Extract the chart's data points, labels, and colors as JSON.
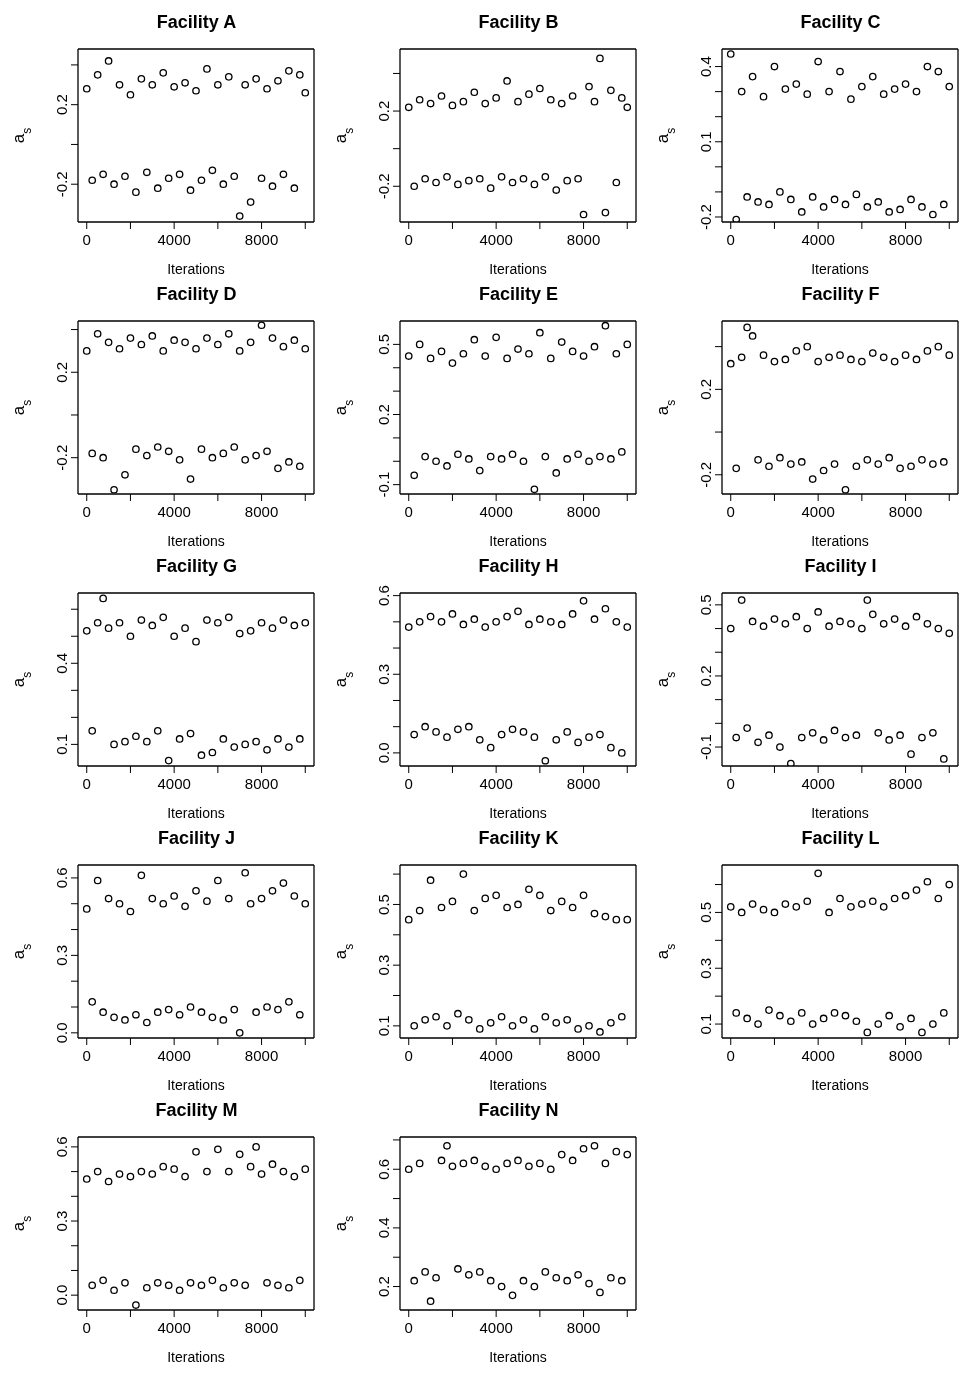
{
  "chart_data": [
    {
      "type": "scatter",
      "title": "Facility A",
      "xlabel": "Iterations",
      "ylabel": "a$_{s}$",
      "color": "#000000",
      "marker": "circle",
      "xlim": [
        -400,
        10400
      ],
      "ylim": [
        -0.39,
        0.48
      ],
      "xticks": [
        0,
        {
          "value": 2000,
          "label": null
        },
        4000,
        {
          "value": 6000,
          "label": null
        },
        8000,
        {
          "value": 10000,
          "label": null
        }
      ],
      "yticks": [
        -0.2,
        {
          "value": 0,
          "label": null
        },
        0.2,
        {
          "value": 0.4,
          "label": null
        }
      ],
      "x": [
        0,
        250,
        500,
        750,
        1000,
        1250,
        1500,
        1750,
        2000,
        2250,
        2500,
        2750,
        3000,
        3250,
        3500,
        3750,
        4000,
        4250,
        4500,
        4750,
        5000,
        5250,
        5500,
        5750,
        6000,
        6250,
        6500,
        6750,
        7000,
        7250,
        7500,
        7750,
        8000,
        8250,
        8500,
        8750,
        9000,
        9250,
        9500,
        9750,
        10000
      ],
      "values": [
        0.28,
        -0.18,
        0.35,
        -0.15,
        0.42,
        -0.2,
        0.3,
        -0.16,
        0.25,
        -0.24,
        0.33,
        -0.14,
        0.3,
        -0.22,
        0.36,
        -0.17,
        0.29,
        -0.15,
        0.31,
        -0.23,
        0.27,
        -0.18,
        0.38,
        -0.13,
        0.3,
        -0.2,
        0.34,
        -0.16,
        -0.36,
        0.3,
        -0.29,
        0.33,
        -0.17,
        0.28,
        -0.21,
        0.32,
        -0.15,
        0.37,
        -0.22,
        0.35,
        0.26
      ]
    },
    {
      "type": "scatter",
      "title": "Facility B",
      "xlabel": "Iterations",
      "ylabel": "a$_{s}$",
      "color": "#000000",
      "marker": "circle",
      "xlim": [
        -400,
        10400
      ],
      "ylim": [
        -0.39,
        0.53
      ],
      "xticks": [
        0,
        {
          "value": 2000,
          "label": null
        },
        4000,
        {
          "value": 6000,
          "label": null
        },
        8000,
        {
          "value": 10000,
          "label": null
        }
      ],
      "yticks": [
        -0.2,
        {
          "value": 0,
          "label": null
        },
        0.2,
        {
          "value": 0.4,
          "label": null
        }
      ],
      "x": [
        0,
        250,
        500,
        750,
        1000,
        1250,
        1500,
        1750,
        2000,
        2250,
        2500,
        2750,
        3000,
        3250,
        3500,
        3750,
        4000,
        4250,
        4500,
        4750,
        5000,
        5250,
        5500,
        5750,
        6000,
        6250,
        6500,
        6750,
        7000,
        7250,
        7500,
        7750,
        8000,
        8250,
        8500,
        8750,
        9000,
        9250,
        9500,
        9750,
        10000
      ],
      "values": [
        0.22,
        -0.2,
        0.26,
        -0.16,
        0.24,
        -0.18,
        0.28,
        -0.15,
        0.23,
        -0.19,
        0.25,
        -0.17,
        0.3,
        -0.16,
        0.24,
        -0.21,
        0.27,
        -0.15,
        0.36,
        -0.18,
        0.25,
        -0.16,
        0.29,
        -0.19,
        0.32,
        -0.15,
        0.26,
        -0.22,
        0.24,
        -0.17,
        0.28,
        -0.16,
        -0.35,
        0.33,
        0.25,
        0.48,
        -0.34,
        0.31,
        -0.18,
        0.27,
        0.22
      ]
    },
    {
      "type": "scatter",
      "title": "Facility C",
      "xlabel": "Iterations",
      "ylabel": "a$_{s}$",
      "color": "#000000",
      "marker": "circle",
      "xlim": [
        -400,
        10400
      ],
      "ylim": [
        -0.22,
        0.47
      ],
      "xticks": [
        0,
        {
          "value": 2000,
          "label": null
        },
        4000,
        {
          "value": 6000,
          "label": null
        },
        8000,
        {
          "value": 10000,
          "label": null
        }
      ],
      "yticks": [
        -0.2,
        {
          "value": -0.1,
          "label": null
        },
        {
          "value": 0,
          "label": null
        },
        0.1,
        {
          "value": 0.2,
          "label": null
        },
        {
          "value": 0.3,
          "label": null
        },
        0.4
      ],
      "x": [
        0,
        250,
        500,
        750,
        1000,
        1250,
        1500,
        1750,
        2000,
        2250,
        2500,
        2750,
        3000,
        3250,
        3500,
        3750,
        4000,
        4250,
        4500,
        4750,
        5000,
        5250,
        5500,
        5750,
        6000,
        6250,
        6500,
        6750,
        7000,
        7250,
        7500,
        7750,
        8000,
        8250,
        8500,
        8750,
        9000,
        9250,
        9500,
        9750,
        10000
      ],
      "values": [
        0.45,
        -0.21,
        0.3,
        -0.12,
        0.36,
        -0.14,
        0.28,
        -0.15,
        0.4,
        -0.1,
        0.31,
        -0.13,
        0.33,
        -0.18,
        0.29,
        -0.12,
        0.42,
        -0.16,
        0.3,
        -0.13,
        0.38,
        -0.15,
        0.27,
        -0.11,
        0.32,
        -0.16,
        0.36,
        -0.14,
        0.29,
        -0.18,
        0.31,
        -0.17,
        0.33,
        -0.13,
        0.3,
        -0.16,
        0.4,
        -0.19,
        0.38,
        -0.15,
        0.32
      ]
    },
    {
      "type": "scatter",
      "title": "Facility D",
      "xlabel": "Iterations",
      "ylabel": "a$_{s}$",
      "color": "#000000",
      "marker": "circle",
      "xlim": [
        -400,
        10400
      ],
      "ylim": [
        -0.37,
        0.44
      ],
      "xticks": [
        0,
        {
          "value": 2000,
          "label": null
        },
        4000,
        {
          "value": 6000,
          "label": null
        },
        8000,
        {
          "value": 10000,
          "label": null
        }
      ],
      "yticks": [
        -0.2,
        {
          "value": 0,
          "label": null
        },
        0.2,
        {
          "value": 0.4,
          "label": null
        }
      ],
      "x": [
        0,
        250,
        500,
        750,
        1000,
        1250,
        1500,
        1750,
        2000,
        2250,
        2500,
        2750,
        3000,
        3250,
        3500,
        3750,
        4000,
        4250,
        4500,
        4750,
        5000,
        5250,
        5500,
        5750,
        6000,
        6250,
        6500,
        6750,
        7000,
        7250,
        7500,
        7750,
        8000,
        8250,
        8500,
        8750,
        9000,
        9250,
        9500,
        9750,
        10000
      ],
      "values": [
        0.3,
        -0.18,
        0.38,
        -0.2,
        0.34,
        -0.35,
        0.31,
        -0.28,
        0.36,
        -0.16,
        0.33,
        -0.19,
        0.37,
        -0.15,
        0.3,
        -0.17,
        0.35,
        -0.21,
        0.34,
        -0.3,
        0.31,
        -0.16,
        0.36,
        -0.2,
        0.33,
        -0.18,
        0.38,
        -0.15,
        0.3,
        -0.21,
        0.34,
        -0.19,
        0.42,
        -0.17,
        0.36,
        -0.25,
        0.32,
        -0.22,
        0.35,
        -0.24,
        0.31
      ]
    },
    {
      "type": "scatter",
      "title": "Facility E",
      "xlabel": "Iterations",
      "ylabel": "a$_{s}$",
      "color": "#000000",
      "marker": "circle",
      "xlim": [
        -400,
        10400
      ],
      "ylim": [
        -0.14,
        0.6
      ],
      "xticks": [
        0,
        {
          "value": 2000,
          "label": null
        },
        4000,
        {
          "value": 6000,
          "label": null
        },
        8000,
        {
          "value": 10000,
          "label": null
        }
      ],
      "yticks": [
        -0.1,
        {
          "value": 0,
          "label": null
        },
        {
          "value": 0.1,
          "label": null
        },
        0.2,
        {
          "value": 0.3,
          "label": null
        },
        {
          "value": 0.4,
          "label": null
        },
        0.5
      ],
      "x": [
        0,
        250,
        500,
        750,
        1000,
        1250,
        1500,
        1750,
        2000,
        2250,
        2500,
        2750,
        3000,
        3250,
        3500,
        3750,
        4000,
        4250,
        4500,
        4750,
        5000,
        5250,
        5500,
        5750,
        6000,
        6250,
        6500,
        6750,
        7000,
        7250,
        7500,
        7750,
        8000,
        8250,
        8500,
        8750,
        9000,
        9250,
        9500,
        9750,
        10000
      ],
      "values": [
        0.45,
        -0.06,
        0.5,
        0.02,
        0.44,
        0.0,
        0.47,
        -0.02,
        0.42,
        0.03,
        0.46,
        0.01,
        0.52,
        -0.04,
        0.45,
        0.02,
        0.53,
        0.01,
        0.44,
        0.03,
        0.48,
        0.0,
        0.46,
        -0.12,
        0.55,
        0.02,
        0.44,
        -0.05,
        0.51,
        0.01,
        0.47,
        0.03,
        0.45,
        0.0,
        0.49,
        0.02,
        0.58,
        0.01,
        0.46,
        0.04,
        0.5
      ]
    },
    {
      "type": "scatter",
      "title": "Facility F",
      "xlabel": "Iterations",
      "ylabel": "a$_{s}$",
      "color": "#000000",
      "marker": "circle",
      "xlim": [
        -400,
        10400
      ],
      "ylim": [
        -0.29,
        0.52
      ],
      "xticks": [
        0,
        {
          "value": 2000,
          "label": null
        },
        4000,
        {
          "value": 6000,
          "label": null
        },
        8000,
        {
          "value": 10000,
          "label": null
        }
      ],
      "yticks": [
        -0.2,
        {
          "value": 0,
          "label": null
        },
        0.2,
        {
          "value": 0.4,
          "label": null
        }
      ],
      "x": [
        0,
        250,
        500,
        750,
        1000,
        1250,
        1500,
        1750,
        2000,
        2250,
        2500,
        2750,
        3000,
        3250,
        3500,
        3750,
        4000,
        4250,
        4500,
        4750,
        5000,
        5250,
        5500,
        5750,
        6000,
        6250,
        6500,
        6750,
        7000,
        7250,
        7500,
        7750,
        8000,
        8250,
        8500,
        8750,
        9000,
        9250,
        9500,
        9750,
        10000
      ],
      "values": [
        0.32,
        -0.17,
        0.35,
        0.49,
        0.45,
        -0.13,
        0.36,
        -0.16,
        0.33,
        -0.12,
        0.34,
        -0.15,
        0.38,
        -0.14,
        0.4,
        -0.22,
        0.33,
        -0.18,
        0.35,
        -0.15,
        0.36,
        -0.27,
        0.34,
        -0.16,
        0.33,
        -0.13,
        0.37,
        -0.15,
        0.35,
        -0.12,
        0.33,
        -0.17,
        0.36,
        -0.16,
        0.34,
        -0.13,
        0.38,
        -0.15,
        0.4,
        -0.14,
        0.36
      ]
    },
    {
      "type": "scatter",
      "title": "Facility G",
      "xlabel": "Iterations",
      "ylabel": "a$_{s}$",
      "color": "#000000",
      "marker": "circle",
      "xlim": [
        -400,
        10400
      ],
      "ylim": [
        0.02,
        0.66
      ],
      "xticks": [
        0,
        {
          "value": 2000,
          "label": null
        },
        4000,
        {
          "value": 6000,
          "label": null
        },
        8000,
        {
          "value": 10000,
          "label": null
        }
      ],
      "yticks": [
        0.1,
        {
          "value": 0.2,
          "label": null
        },
        {
          "value": 0.3,
          "label": null
        },
        0.4,
        {
          "value": 0.5,
          "label": null
        },
        {
          "value": 0.6,
          "label": null
        }
      ],
      "x": [
        0,
        250,
        500,
        750,
        1000,
        1250,
        1500,
        1750,
        2000,
        2250,
        2500,
        2750,
        3000,
        3250,
        3500,
        3750,
        4000,
        4250,
        4500,
        4750,
        5000,
        5250,
        5500,
        5750,
        6000,
        6250,
        6500,
        6750,
        7000,
        7250,
        7500,
        7750,
        8000,
        8250,
        8500,
        8750,
        9000,
        9250,
        9500,
        9750,
        10000
      ],
      "values": [
        0.52,
        0.15,
        0.55,
        0.64,
        0.53,
        0.1,
        0.55,
        0.11,
        0.5,
        0.13,
        0.56,
        0.11,
        0.54,
        0.15,
        0.57,
        0.04,
        0.5,
        0.12,
        0.53,
        0.14,
        0.48,
        0.06,
        0.56,
        0.07,
        0.55,
        0.12,
        0.57,
        0.09,
        0.51,
        0.1,
        0.52,
        0.11,
        0.55,
        0.08,
        0.53,
        0.12,
        0.56,
        0.09,
        0.54,
        0.12,
        0.55
      ]
    },
    {
      "type": "scatter",
      "title": "Facility H",
      "xlabel": "Iterations",
      "ylabel": "a$_{s}$",
      "color": "#000000",
      "marker": "circle",
      "xlim": [
        -400,
        10400
      ],
      "ylim": [
        -0.05,
        0.61
      ],
      "xticks": [
        0,
        {
          "value": 2000,
          "label": null
        },
        4000,
        {
          "value": 6000,
          "label": null
        },
        8000,
        {
          "value": 10000,
          "label": null
        }
      ],
      "yticks": [
        {
          "value": 0,
          "label": "0.0"
        },
        {
          "value": 0.1,
          "label": null
        },
        {
          "value": 0.2,
          "label": null
        },
        0.3,
        {
          "value": 0.4,
          "label": null
        },
        {
          "value": 0.5,
          "label": null
        },
        0.6
      ],
      "x": [
        0,
        250,
        500,
        750,
        1000,
        1250,
        1500,
        1750,
        2000,
        2250,
        2500,
        2750,
        3000,
        3250,
        3500,
        3750,
        4000,
        4250,
        4500,
        4750,
        5000,
        5250,
        5500,
        5750,
        6000,
        6250,
        6500,
        6750,
        7000,
        7250,
        7500,
        7750,
        8000,
        8250,
        8500,
        8750,
        9000,
        9250,
        9500,
        9750,
        10000
      ],
      "values": [
        0.48,
        0.07,
        0.5,
        0.1,
        0.52,
        0.08,
        0.5,
        0.06,
        0.53,
        0.09,
        0.49,
        0.1,
        0.51,
        0.05,
        0.48,
        0.02,
        0.5,
        0.07,
        0.52,
        0.09,
        0.54,
        0.08,
        0.49,
        0.06,
        0.51,
        -0.03,
        0.5,
        0.05,
        0.49,
        0.08,
        0.53,
        0.04,
        0.58,
        0.06,
        0.51,
        0.07,
        0.55,
        0.02,
        0.5,
        0.0,
        0.48
      ]
    },
    {
      "type": "scatter",
      "title": "Facility I",
      "xlabel": "Iterations",
      "ylabel": "a$_{s}$",
      "color": "#000000",
      "marker": "circle",
      "xlim": [
        -400,
        10400
      ],
      "ylim": [
        -0.18,
        0.55
      ],
      "xticks": [
        0,
        {
          "value": 2000,
          "label": null
        },
        4000,
        {
          "value": 6000,
          "label": null
        },
        8000,
        {
          "value": 10000,
          "label": null
        }
      ],
      "yticks": [
        -0.1,
        {
          "value": 0,
          "label": null
        },
        {
          "value": 0.1,
          "label": null
        },
        0.2,
        {
          "value": 0.3,
          "label": null
        },
        {
          "value": 0.4,
          "label": null
        },
        0.5
      ],
      "x": [
        0,
        250,
        500,
        750,
        1000,
        1250,
        1500,
        1750,
        2000,
        2250,
        2500,
        2750,
        3000,
        3250,
        3500,
        3750,
        4000,
        4250,
        4500,
        4750,
        5000,
        5250,
        5500,
        5750,
        6000,
        6250,
        6500,
        6750,
        7000,
        7250,
        7500,
        7750,
        8000,
        8250,
        8500,
        8750,
        9000,
        9250,
        9500,
        9750,
        10000
      ],
      "values": [
        0.4,
        -0.06,
        0.52,
        -0.02,
        0.43,
        -0.08,
        0.41,
        -0.05,
        0.44,
        -0.1,
        0.42,
        -0.17,
        0.45,
        -0.06,
        0.4,
        -0.04,
        0.47,
        -0.07,
        0.41,
        -0.03,
        0.43,
        -0.06,
        0.42,
        -0.05,
        0.4,
        0.52,
        0.46,
        -0.04,
        0.42,
        -0.07,
        0.44,
        -0.05,
        0.41,
        -0.13,
        0.45,
        -0.06,
        0.42,
        -0.04,
        0.4,
        -0.15,
        0.38
      ]
    },
    {
      "type": "scatter",
      "title": "Facility J",
      "xlabel": "Iterations",
      "ylabel": "a$_{s}$",
      "color": "#000000",
      "marker": "circle",
      "xlim": [
        -400,
        10400
      ],
      "ylim": [
        -0.02,
        0.65
      ],
      "xticks": [
        0,
        {
          "value": 2000,
          "label": null
        },
        4000,
        {
          "value": 6000,
          "label": null
        },
        8000,
        {
          "value": 10000,
          "label": null
        }
      ],
      "yticks": [
        {
          "value": 0,
          "label": "0.0"
        },
        {
          "value": 0.1,
          "label": null
        },
        {
          "value": 0.2,
          "label": null
        },
        0.3,
        {
          "value": 0.4,
          "label": null
        },
        {
          "value": 0.5,
          "label": null
        },
        0.6
      ],
      "x": [
        0,
        250,
        500,
        750,
        1000,
        1250,
        1500,
        1750,
        2000,
        2250,
        2500,
        2750,
        3000,
        3250,
        3500,
        3750,
        4000,
        4250,
        4500,
        4750,
        5000,
        5250,
        5500,
        5750,
        6000,
        6250,
        6500,
        6750,
        7000,
        7250,
        7500,
        7750,
        8000,
        8250,
        8500,
        8750,
        9000,
        9250,
        9500,
        9750,
        10000
      ],
      "values": [
        0.48,
        0.12,
        0.59,
        0.08,
        0.52,
        0.06,
        0.5,
        0.05,
        0.47,
        0.07,
        0.61,
        0.04,
        0.52,
        0.08,
        0.5,
        0.09,
        0.53,
        0.07,
        0.49,
        0.1,
        0.55,
        0.08,
        0.51,
        0.06,
        0.59,
        0.05,
        0.52,
        0.09,
        0.0,
        0.62,
        0.5,
        0.08,
        0.52,
        0.1,
        0.55,
        0.09,
        0.58,
        0.12,
        0.53,
        0.07,
        0.5
      ]
    },
    {
      "type": "scatter",
      "title": "Facility K",
      "xlabel": "Iterations",
      "ylabel": "a$_{s}$",
      "color": "#000000",
      "marker": "circle",
      "xlim": [
        -400,
        10400
      ],
      "ylim": [
        0.06,
        0.63
      ],
      "xticks": [
        0,
        {
          "value": 2000,
          "label": null
        },
        4000,
        {
          "value": 6000,
          "label": null
        },
        8000,
        {
          "value": 10000,
          "label": null
        }
      ],
      "yticks": [
        0.1,
        {
          "value": 0.2,
          "label": null
        },
        0.3,
        {
          "value": 0.4,
          "label": null
        },
        0.5,
        {
          "value": 0.6,
          "label": null
        }
      ],
      "x": [
        0,
        250,
        500,
        750,
        1000,
        1250,
        1500,
        1750,
        2000,
        2250,
        2500,
        2750,
        3000,
        3250,
        3500,
        3750,
        4000,
        4250,
        4500,
        4750,
        5000,
        5250,
        5500,
        5750,
        6000,
        6250,
        6500,
        6750,
        7000,
        7250,
        7500,
        7750,
        8000,
        8250,
        8500,
        8750,
        9000,
        9250,
        9500,
        9750,
        10000
      ],
      "values": [
        0.45,
        0.1,
        0.48,
        0.12,
        0.58,
        0.13,
        0.49,
        0.1,
        0.51,
        0.14,
        0.6,
        0.12,
        0.48,
        0.09,
        0.52,
        0.11,
        0.53,
        0.13,
        0.49,
        0.1,
        0.5,
        0.12,
        0.55,
        0.09,
        0.53,
        0.13,
        0.48,
        0.11,
        0.51,
        0.12,
        0.49,
        0.09,
        0.53,
        0.1,
        0.47,
        0.08,
        0.46,
        0.11,
        0.45,
        0.13,
        0.45
      ]
    },
    {
      "type": "scatter",
      "title": "Facility L",
      "xlabel": "Iterations",
      "ylabel": "a$_{s}$",
      "color": "#000000",
      "marker": "circle",
      "xlim": [
        -400,
        10400
      ],
      "ylim": [
        0.05,
        0.67
      ],
      "xticks": [
        0,
        {
          "value": 2000,
          "label": null
        },
        4000,
        {
          "value": 6000,
          "label": null
        },
        8000,
        {
          "value": 10000,
          "label": null
        }
      ],
      "yticks": [
        0.1,
        {
          "value": 0.2,
          "label": null
        },
        0.3,
        {
          "value": 0.4,
          "label": null
        },
        0.5,
        {
          "value": 0.6,
          "label": null
        }
      ],
      "x": [
        0,
        250,
        500,
        750,
        1000,
        1250,
        1500,
        1750,
        2000,
        2250,
        2500,
        2750,
        3000,
        3250,
        3500,
        3750,
        4000,
        4250,
        4500,
        4750,
        5000,
        5250,
        5500,
        5750,
        6000,
        6250,
        6500,
        6750,
        7000,
        7250,
        7500,
        7750,
        8000,
        8250,
        8500,
        8750,
        9000,
        9250,
        9500,
        9750,
        10000
      ],
      "values": [
        0.52,
        0.14,
        0.5,
        0.12,
        0.53,
        0.1,
        0.51,
        0.15,
        0.5,
        0.13,
        0.53,
        0.11,
        0.52,
        0.14,
        0.54,
        0.1,
        0.64,
        0.12,
        0.5,
        0.14,
        0.55,
        0.13,
        0.52,
        0.11,
        0.53,
        0.07,
        0.54,
        0.1,
        0.52,
        0.13,
        0.55,
        0.09,
        0.56,
        0.12,
        0.58,
        0.07,
        0.61,
        0.1,
        0.55,
        0.14,
        0.6
      ]
    },
    {
      "type": "scatter",
      "title": "Facility M",
      "xlabel": "Iterations",
      "ylabel": "a$_{s}$",
      "color": "#000000",
      "marker": "circle",
      "xlim": [
        -400,
        10400
      ],
      "ylim": [
        -0.06,
        0.64
      ],
      "xticks": [
        0,
        {
          "value": 2000,
          "label": null
        },
        4000,
        {
          "value": 6000,
          "label": null
        },
        8000,
        {
          "value": 10000,
          "label": null
        }
      ],
      "yticks": [
        {
          "value": 0,
          "label": "0.0"
        },
        {
          "value": 0.1,
          "label": null
        },
        {
          "value": 0.2,
          "label": null
        },
        0.3,
        {
          "value": 0.4,
          "label": null
        },
        {
          "value": 0.5,
          "label": null
        },
        0.6
      ],
      "x": [
        0,
        250,
        500,
        750,
        1000,
        1250,
        1500,
        1750,
        2000,
        2250,
        2500,
        2750,
        3000,
        3250,
        3500,
        3750,
        4000,
        4250,
        4500,
        4750,
        5000,
        5250,
        5500,
        5750,
        6000,
        6250,
        6500,
        6750,
        7000,
        7250,
        7500,
        7750,
        8000,
        8250,
        8500,
        8750,
        9000,
        9250,
        9500,
        9750,
        10000
      ],
      "values": [
        0.47,
        0.04,
        0.5,
        0.06,
        0.46,
        0.02,
        0.49,
        0.05,
        0.48,
        -0.04,
        0.5,
        0.03,
        0.49,
        0.05,
        0.52,
        0.04,
        0.51,
        0.02,
        0.48,
        0.05,
        0.58,
        0.04,
        0.5,
        0.06,
        0.59,
        0.03,
        0.5,
        0.05,
        0.57,
        0.04,
        0.52,
        0.6,
        0.49,
        0.05,
        0.53,
        0.04,
        0.5,
        0.03,
        0.48,
        0.06,
        0.51
      ]
    },
    {
      "type": "scatter",
      "title": "Facility N",
      "xlabel": "Iterations",
      "ylabel": "a$_{s}$",
      "color": "#000000",
      "marker": "circle",
      "xlim": [
        -400,
        10400
      ],
      "ylim": [
        0.12,
        0.71
      ],
      "xticks": [
        0,
        {
          "value": 2000,
          "label": null
        },
        4000,
        {
          "value": 6000,
          "label": null
        },
        8000,
        {
          "value": 10000,
          "label": null
        }
      ],
      "yticks": [
        0.2,
        {
          "value": 0.3,
          "label": null
        },
        0.4,
        {
          "value": 0.5,
          "label": null
        },
        0.6,
        {
          "value": 0.7,
          "label": null
        }
      ],
      "x": [
        0,
        250,
        500,
        750,
        1000,
        1250,
        1500,
        1750,
        2000,
        2250,
        2500,
        2750,
        3000,
        3250,
        3500,
        3750,
        4000,
        4250,
        4500,
        4750,
        5000,
        5250,
        5500,
        5750,
        6000,
        6250,
        6500,
        6750,
        7000,
        7250,
        7500,
        7750,
        8000,
        8250,
        8500,
        8750,
        9000,
        9250,
        9500,
        9750,
        10000
      ],
      "values": [
        0.6,
        0.22,
        0.62,
        0.25,
        0.15,
        0.23,
        0.63,
        0.68,
        0.61,
        0.26,
        0.62,
        0.24,
        0.63,
        0.25,
        0.61,
        0.22,
        0.6,
        0.2,
        0.62,
        0.17,
        0.63,
        0.22,
        0.61,
        0.2,
        0.62,
        0.25,
        0.6,
        0.23,
        0.65,
        0.22,
        0.63,
        0.24,
        0.67,
        0.21,
        0.68,
        0.18,
        0.62,
        0.23,
        0.66,
        0.22,
        0.65
      ]
    }
  ]
}
